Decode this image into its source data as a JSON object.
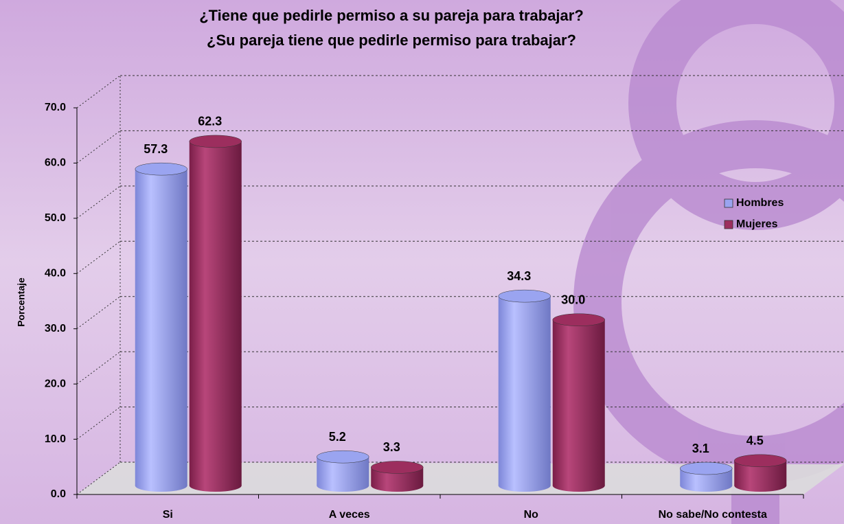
{
  "chart_data": {
    "type": "bar3d",
    "title": [
      "¿Tiene que pedirle permiso a su pareja para trabajar?",
      "¿Su pareja tiene que pedirle permiso para trabajar?"
    ],
    "y_label": "Porcentaje",
    "categories": [
      "Si",
      "A veces",
      "No",
      "No sabe/No contesta"
    ],
    "series": [
      {
        "name": "Hombres",
        "color": "#9aa4f0",
        "values": [
          57.3,
          5.2,
          34.3,
          3.1
        ],
        "value_labels": [
          "57.3",
          "5.2",
          "34.3",
          "3.1"
        ]
      },
      {
        "name": "Mujeres",
        "color": "#9c2e5e",
        "values": [
          62.3,
          3.3,
          30.0,
          4.5
        ],
        "value_labels": [
          "62.3",
          "3.3",
          "30.0",
          "4.5"
        ]
      }
    ],
    "ylim": [
      0,
      70
    ],
    "yticks": [
      {
        "value": 0,
        "label": "0.0"
      },
      {
        "value": 10,
        "label": "10.0"
      },
      {
        "value": 20,
        "label": "20.0"
      },
      {
        "value": 30,
        "label": "30.0"
      },
      {
        "value": 40,
        "label": "40.0"
      },
      {
        "value": 50,
        "label": "50.0"
      },
      {
        "value": 60,
        "label": "60.0"
      },
      {
        "value": 70,
        "label": "70.0"
      }
    ],
    "grid": true,
    "legend": "right"
  }
}
